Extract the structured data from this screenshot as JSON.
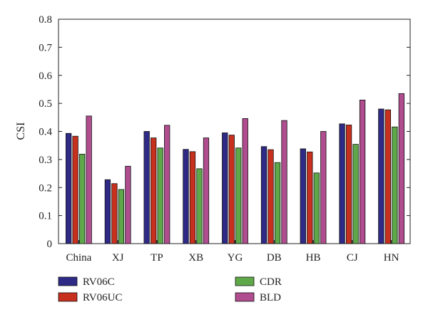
{
  "chart_data": {
    "type": "bar",
    "title": "",
    "xlabel": "",
    "ylabel": "CSI",
    "ylim": [
      0,
      0.8
    ],
    "yticks": [
      "0",
      "0.1",
      "0.2",
      "0.3",
      "0.4",
      "0.5",
      "0.6",
      "0.7",
      "0.8"
    ],
    "categories": [
      "China",
      "XJ",
      "TP",
      "XB",
      "YG",
      "DB",
      "HB",
      "CJ",
      "HN"
    ],
    "grid": false,
    "legend_position": "bottom",
    "series": [
      {
        "name": "RV06C",
        "color": "#2e2a86",
        "values": [
          0.393,
          0.228,
          0.4,
          0.336,
          0.395,
          0.346,
          0.338,
          0.427,
          0.48
        ]
      },
      {
        "name": "RV06UC",
        "color": "#c8301e",
        "values": [
          0.383,
          0.214,
          0.377,
          0.328,
          0.387,
          0.335,
          0.327,
          0.423,
          0.477
        ]
      },
      {
        "name": "CDR",
        "color": "#5fa84a",
        "values": [
          0.319,
          0.193,
          0.341,
          0.267,
          0.341,
          0.289,
          0.252,
          0.354,
          0.416
        ]
      },
      {
        "name": "BLD",
        "color": "#b04d8f",
        "values": [
          0.455,
          0.276,
          0.422,
          0.377,
          0.446,
          0.439,
          0.4,
          0.512,
          0.535
        ]
      }
    ]
  }
}
